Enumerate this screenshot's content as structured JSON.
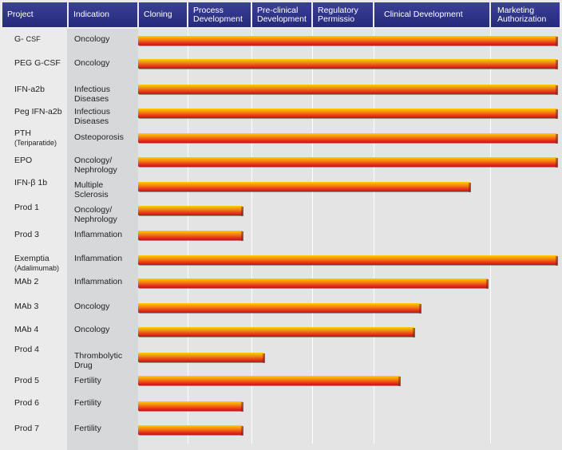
{
  "headers": {
    "project": "Project",
    "indication": "Indication",
    "stages": [
      "Cloning",
      "Process Development",
      "Pre-clinical Development",
      "Regulatory Permissio",
      "Clinical Development",
      "Marketing Authorization"
    ]
  },
  "colors": {
    "header": "#2e3388",
    "bar_top": "#ffd000",
    "bar_mid": "#f78a10",
    "bar_bottom": "#e8321c"
  },
  "chart_data": {
    "type": "bar",
    "orientation": "horizontal",
    "x_unit": "development stage",
    "stages": [
      "Cloning",
      "Process Development",
      "Pre-clinical Development",
      "Regulatory Permissio",
      "Clinical Development",
      "Marketing Authorization"
    ],
    "rows": [
      {
        "project": "G-",
        "project_suffix": "CSF",
        "indication": "Oncology",
        "progress": 6.0
      },
      {
        "project": "PEG G-CSF",
        "indication": "Oncology",
        "progress": 6.0
      },
      {
        "project": "IFN-a2b",
        "indication": "Infectious Diseases",
        "progress": 6.0
      },
      {
        "project": "Peg IFN-a2b",
        "indication": "Infectious Diseases",
        "progress": 6.0
      },
      {
        "project": "PTH",
        "project_suffix": "(Teriparatide)",
        "indication": "Osteoporosis",
        "progress": 6.0
      },
      {
        "project": "EPO",
        "indication": "Oncology/ Nephrology",
        "progress": 6.0
      },
      {
        "project": "IFN-β 1b",
        "indication": "Multiple Sclerosis",
        "progress": 4.75
      },
      {
        "project": "Prod 1",
        "indication": "Oncology/ Nephrology",
        "progress": 1.5
      },
      {
        "project": "Prod 3",
        "indication": "Inflammation",
        "progress": 1.5
      },
      {
        "project": "Exemptia",
        "project_suffix": "(Adalimumab)",
        "indication": "Inflammation",
        "progress": 6.0
      },
      {
        "project": "MAb 2",
        "indication": "Inflammation",
        "progress": 5.0
      },
      {
        "project": "MAb 3",
        "indication": "Oncology",
        "progress": 4.05
      },
      {
        "project": "MAb 4",
        "indication": "Oncology",
        "progress": 3.95
      },
      {
        "project": "Prod 4",
        "indication": "Thrombolytic Drug",
        "progress": 1.8
      },
      {
        "project": "Prod 5",
        "indication": "Fertility",
        "progress": 3.75
      },
      {
        "project": "Prod 6",
        "indication": "Fertility",
        "progress": 1.5
      },
      {
        "project": "Prod 7",
        "indication": "Fertility",
        "progress": 1.5
      }
    ]
  }
}
